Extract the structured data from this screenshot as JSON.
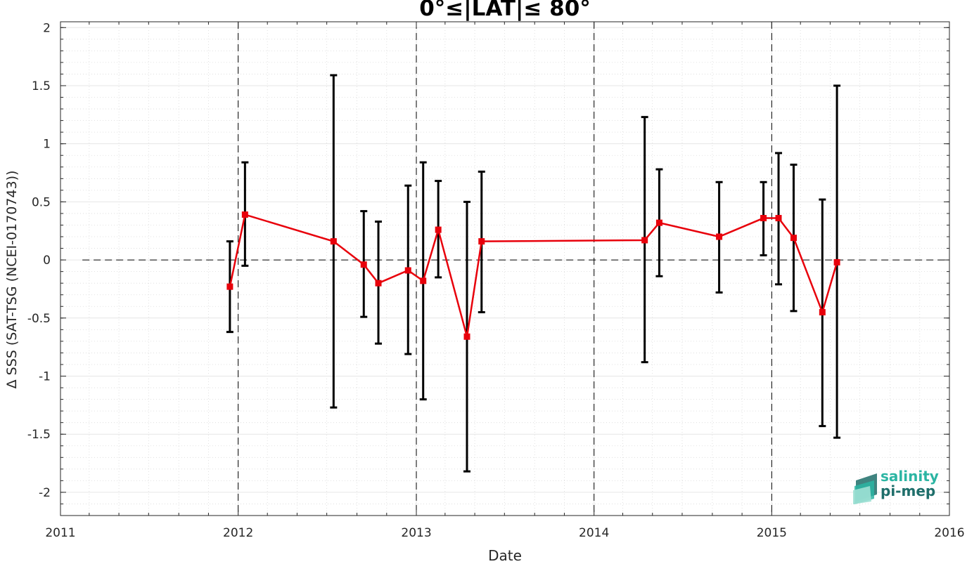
{
  "chart_data": {
    "type": "line",
    "title": "0°≤|LAT|≤ 80°",
    "xlabel": "Date",
    "ylabel": "Δ SSS (SAT-TSG (NCEI-0170743))",
    "xlim": [
      "2011-01-01",
      "2016-01-01"
    ],
    "ylim": [
      -2.2,
      2.05
    ],
    "x_ticks": [
      "2011",
      "2012",
      "2013",
      "2014",
      "2015",
      "2016"
    ],
    "y_ticks": [
      -2,
      -1.5,
      -1,
      -0.5,
      0,
      0.5,
      1,
      1.5,
      2
    ],
    "y_tick_labels": [
      "-2",
      "-1.5",
      "-1",
      "-0.5",
      "0",
      "0.5",
      "1",
      "1.5",
      "2"
    ],
    "grid": true,
    "minor_grid": true,
    "year_boundary_lines": [
      "2012-01-01",
      "2013-01-01",
      "2014-01-01",
      "2015-01-01"
    ],
    "reference_line_y": 0,
    "series": [
      {
        "color": "#e8000b",
        "marker": "square",
        "points": [
          {
            "date": "2011-12-15",
            "y": -0.23,
            "err_low": -0.62,
            "err_high": 0.16
          },
          {
            "date": "2012-01-15",
            "y": 0.39,
            "err_low": -0.05,
            "err_high": 0.84
          },
          {
            "date": "2012-07-15",
            "y": 0.16,
            "err_low": -1.27,
            "err_high": 1.59
          },
          {
            "date": "2012-09-15",
            "y": -0.04,
            "err_low": -0.49,
            "err_high": 0.42
          },
          {
            "date": "2012-10-15",
            "y": -0.2,
            "err_low": -0.72,
            "err_high": 0.33
          },
          {
            "date": "2012-12-15",
            "y": -0.09,
            "err_low": -0.81,
            "err_high": 0.64
          },
          {
            "date": "2013-01-15",
            "y": -0.18,
            "err_low": -1.2,
            "err_high": 0.84
          },
          {
            "date": "2013-02-15",
            "y": 0.26,
            "err_low": -0.15,
            "err_high": 0.68
          },
          {
            "date": "2013-04-15",
            "y": -0.66,
            "err_low": -1.82,
            "err_high": 0.5
          },
          {
            "date": "2013-05-15",
            "y": 0.16,
            "err_low": -0.45,
            "err_high": 0.76
          },
          {
            "date": "2014-04-15",
            "y": 0.17,
            "err_low": -0.88,
            "err_high": 1.23
          },
          {
            "date": "2014-05-15",
            "y": 0.32,
            "err_low": -0.14,
            "err_high": 0.78
          },
          {
            "date": "2014-09-15",
            "y": 0.2,
            "err_low": -0.28,
            "err_high": 0.67
          },
          {
            "date": "2014-12-15",
            "y": 0.36,
            "err_low": 0.04,
            "err_high": 0.67
          },
          {
            "date": "2015-01-15",
            "y": 0.36,
            "err_low": -0.21,
            "err_high": 0.92
          },
          {
            "date": "2015-02-15",
            "y": 0.19,
            "err_low": -0.44,
            "err_high": 0.82
          },
          {
            "date": "2015-04-15",
            "y": -0.45,
            "err_low": -1.43,
            "err_high": 0.52
          },
          {
            "date": "2015-05-15",
            "y": -0.02,
            "err_low": -1.53,
            "err_high": 1.5
          }
        ]
      }
    ],
    "error_bar_color": "#000000",
    "logo": {
      "line1": "salinity",
      "line2": "pi-mep",
      "line1_color": "#2bb5a3",
      "line2_color": "#1e6e6a"
    }
  }
}
